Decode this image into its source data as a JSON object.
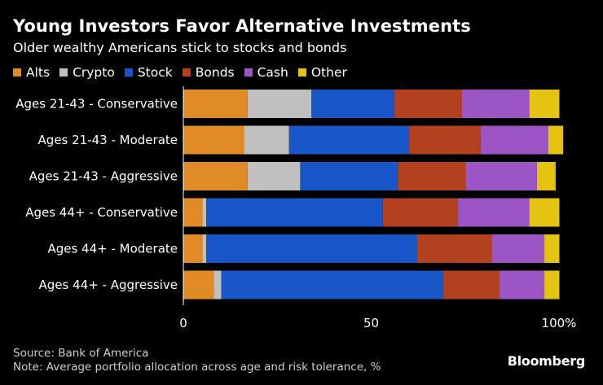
{
  "title": "Young Investors Favor Alternative Investments",
  "subtitle": "Older wealthy Americans stick to stocks and bonds",
  "source": "Source: Bank of America",
  "note": "Note: Average portfolio allocation across age and risk tolerance, %",
  "brand": "Bloomberg",
  "colors": {
    "Alts": "#e08b26",
    "Crypto": "#c0c0c0",
    "Stock": "#1856c8",
    "Bonds": "#b3401f",
    "Cash": "#9b55c4",
    "Other": "#e5c411"
  },
  "chart_data": {
    "type": "bar",
    "orientation": "horizontal",
    "stacked": true,
    "title": "Young Investors Favor Alternative Investments",
    "subtitle": "Older wealthy Americans stick to stocks and bonds",
    "categories": [
      "Ages 21-43 - Conservative",
      "Ages 21-43 - Moderate",
      "Ages 21-43 - Aggressive",
      "Ages 44+ - Conservative",
      "Ages 44+ - Moderate",
      "Ages 44+ - Aggressive"
    ],
    "series": [
      {
        "name": "Alts",
        "values": [
          17,
          16,
          17,
          5,
          5,
          8
        ]
      },
      {
        "name": "Crypto",
        "values": [
          17,
          12,
          14,
          1,
          1,
          2
        ]
      },
      {
        "name": "Stock",
        "values": [
          22,
          32,
          26,
          47,
          56,
          59
        ]
      },
      {
        "name": "Bonds",
        "values": [
          18,
          19,
          18,
          20,
          20,
          15
        ]
      },
      {
        "name": "Cash",
        "values": [
          18,
          18,
          19,
          19,
          14,
          12
        ]
      },
      {
        "name": "Other",
        "values": [
          8,
          4,
          5,
          8,
          4,
          4
        ]
      }
    ],
    "xlim": [
      0,
      100
    ],
    "xticks": [
      "0",
      "50",
      "100%"
    ],
    "xtick_values": [
      0,
      50,
      100
    ],
    "xlabel": "",
    "ylabel": "",
    "legend_position": "top-left"
  }
}
